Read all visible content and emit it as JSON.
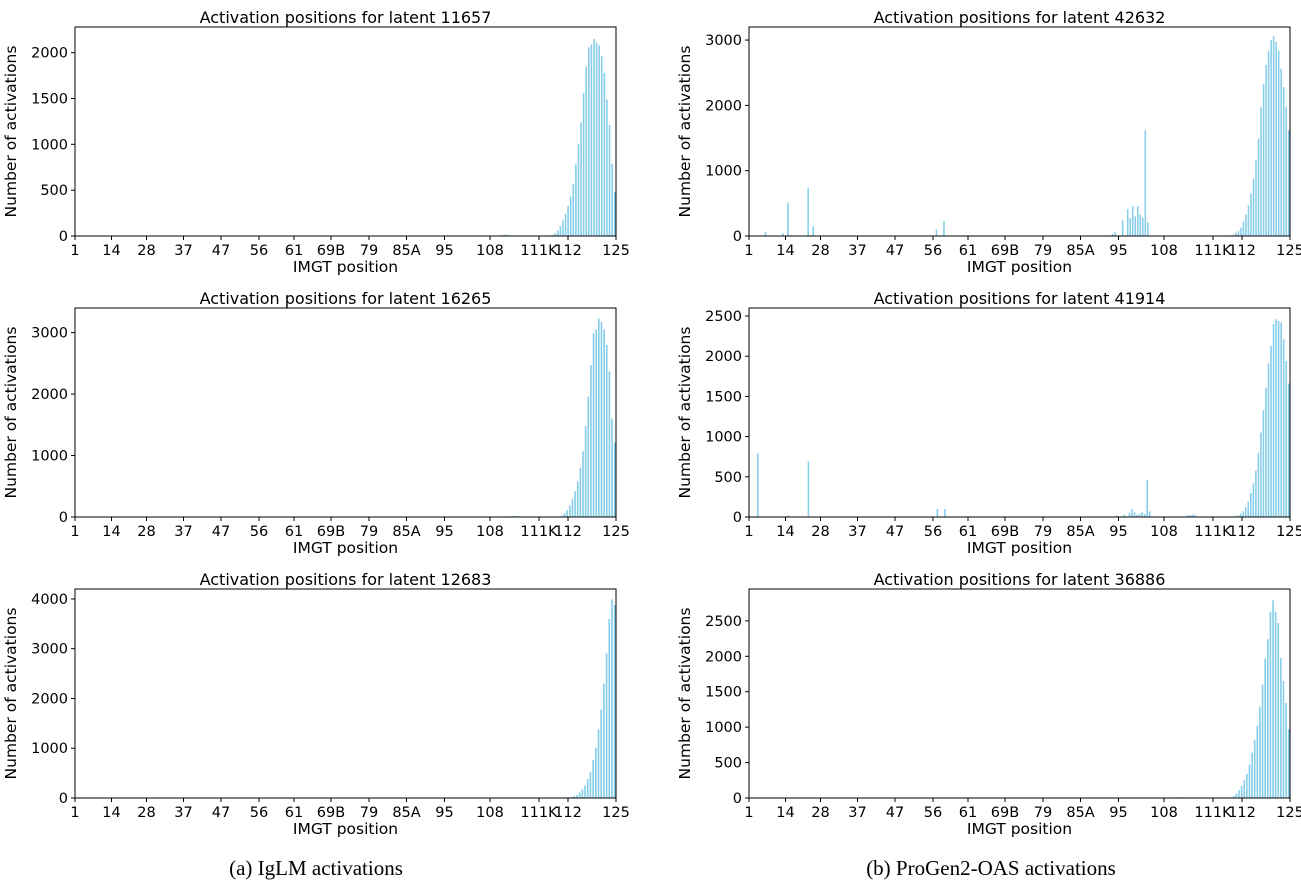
{
  "figure": {
    "captions": {
      "a": "(a) IgLM activations",
      "b": "(b) ProGen2-OAS activations"
    },
    "bar_color": "#87ceeb"
  },
  "chart_data": [
    {
      "type": "bar",
      "title": "Activation positions for latent 11657",
      "xlabel": "IMGT position",
      "ylabel": "Number of activations",
      "x_ticks": [
        "1",
        "14",
        "28",
        "37",
        "47",
        "56",
        "61",
        "69B",
        "79",
        "85A",
        "95",
        "108",
        "111K",
        "112",
        "125"
      ],
      "ylim": [
        0,
        2280
      ],
      "y_ticks": [
        0,
        500,
        1000,
        1500,
        2000
      ],
      "grid": false,
      "values": [
        0,
        0,
        0,
        0,
        0,
        0,
        0,
        0,
        0,
        0,
        0,
        0,
        0,
        0,
        0,
        0,
        0,
        0,
        0,
        0,
        0,
        0,
        0,
        0,
        0,
        0,
        0,
        0,
        0,
        0,
        0,
        0,
        0,
        0,
        0,
        0,
        0,
        0,
        0,
        0,
        0,
        0,
        0,
        0,
        0,
        0,
        0,
        0,
        0,
        0,
        0,
        0,
        0,
        0,
        0,
        0,
        0,
        0,
        0,
        0,
        0,
        0,
        0,
        0,
        0,
        0,
        0,
        0,
        0,
        0,
        0,
        0,
        0,
        0,
        0,
        0,
        0,
        0,
        0,
        0,
        0,
        0,
        0,
        0,
        0,
        0,
        0,
        0,
        0,
        0,
        0,
        0,
        0,
        0,
        0,
        0,
        0,
        0,
        0,
        0,
        0,
        0,
        0,
        0,
        0,
        0,
        0,
        0,
        0,
        0,
        0,
        0,
        0,
        0,
        0,
        0,
        0,
        0,
        0,
        0,
        0,
        0,
        0,
        0,
        0,
        0,
        0,
        0,
        0,
        0,
        0,
        0,
        0,
        0,
        0,
        0,
        0,
        0,
        0,
        0,
        0,
        0,
        0,
        0,
        0,
        0,
        0,
        0,
        0,
        0,
        0,
        0,
        0,
        0,
        0,
        0,
        0,
        0,
        0,
        0,
        0,
        0,
        0,
        5,
        8,
        12,
        15,
        10,
        6,
        3,
        0,
        0,
        0,
        0,
        0,
        0,
        0,
        0,
        0,
        0,
        0,
        0,
        0,
        0,
        10,
        30,
        60,
        110,
        170,
        240,
        330,
        430,
        570,
        780,
        1000,
        1240,
        1560,
        1850,
        2060,
        2090,
        2150,
        2110,
        2080,
        1960,
        1780,
        1490,
        1210,
        790,
        480
      ]
    },
    {
      "type": "bar",
      "title": "Activation positions for latent 42632",
      "xlabel": "IMGT position",
      "ylabel": "Number of activations",
      "x_ticks": [
        "1",
        "14",
        "28",
        "37",
        "47",
        "56",
        "61",
        "69B",
        "79",
        "85A",
        "95",
        "108",
        "111K",
        "112",
        "125"
      ],
      "ylim": [
        0,
        3200
      ],
      "y_ticks": [
        0,
        1000,
        2000,
        3000
      ],
      "grid": false,
      "values": [
        0,
        0,
        0,
        0,
        0,
        0,
        60,
        0,
        0,
        0,
        0,
        0,
        0,
        40,
        0,
        510,
        0,
        0,
        0,
        0,
        0,
        0,
        0,
        740,
        0,
        150,
        0,
        0,
        0,
        0,
        0,
        0,
        0,
        0,
        0,
        0,
        0,
        0,
        0,
        0,
        0,
        0,
        0,
        0,
        0,
        0,
        0,
        0,
        0,
        0,
        0,
        0,
        0,
        0,
        0,
        0,
        0,
        0,
        0,
        0,
        0,
        0,
        0,
        0,
        0,
        0,
        0,
        0,
        0,
        0,
        0,
        0,
        0,
        0,
        100,
        0,
        0,
        230,
        0,
        0,
        0,
        0,
        0,
        0,
        0,
        0,
        0,
        0,
        0,
        0,
        0,
        0,
        0,
        0,
        0,
        0,
        0,
        0,
        0,
        0,
        0,
        0,
        0,
        0,
        0,
        0,
        0,
        0,
        0,
        0,
        0,
        0,
        0,
        0,
        0,
        0,
        0,
        0,
        0,
        0,
        0,
        0,
        0,
        0,
        0,
        0,
        0,
        0,
        0,
        0,
        0,
        0,
        0,
        0,
        0,
        0,
        0,
        0,
        0,
        0,
        0,
        0,
        0,
        0,
        30,
        60,
        0,
        0,
        240,
        0,
        410,
        270,
        460,
        300,
        460,
        330,
        280,
        1620,
        210,
        0,
        0,
        0,
        0,
        0,
        0,
        0,
        0,
        0,
        0,
        0,
        0,
        0,
        0,
        0,
        0,
        0,
        0,
        0,
        0,
        0,
        0,
        0,
        0,
        0,
        0,
        0,
        0,
        0,
        0,
        0,
        0,
        10,
        20,
        50,
        80,
        130,
        220,
        330,
        470,
        650,
        880,
        1170,
        1490,
        1970,
        2330,
        2620,
        2830,
        3000,
        3060,
        2970,
        2840,
        2560,
        2280,
        1980,
        1620
      ]
    },
    {
      "type": "bar",
      "title": "Activation positions for latent 16265",
      "xlabel": "IMGT position",
      "ylabel": "Number of activations",
      "x_ticks": [
        "1",
        "14",
        "28",
        "37",
        "47",
        "56",
        "61",
        "69B",
        "79",
        "85A",
        "95",
        "108",
        "111K",
        "112",
        "125"
      ],
      "ylim": [
        0,
        3400
      ],
      "y_ticks": [
        0,
        1000,
        2000,
        3000
      ],
      "grid": false,
      "values": [
        0,
        0,
        0,
        0,
        0,
        0,
        0,
        0,
        0,
        0,
        0,
        0,
        0,
        0,
        0,
        0,
        0,
        0,
        0,
        0,
        0,
        0,
        0,
        0,
        0,
        0,
        0,
        0,
        0,
        0,
        0,
        0,
        0,
        0,
        0,
        0,
        0,
        0,
        0,
        0,
        0,
        0,
        0,
        0,
        0,
        0,
        0,
        0,
        0,
        0,
        0,
        0,
        0,
        0,
        0,
        0,
        0,
        0,
        0,
        0,
        0,
        0,
        0,
        0,
        0,
        0,
        0,
        0,
        0,
        0,
        0,
        0,
        0,
        0,
        0,
        0,
        0,
        0,
        0,
        0,
        0,
        0,
        0,
        0,
        0,
        0,
        0,
        0,
        0,
        0,
        0,
        0,
        0,
        0,
        0,
        0,
        0,
        0,
        0,
        0,
        0,
        0,
        0,
        0,
        0,
        0,
        0,
        0,
        0,
        0,
        0,
        0,
        0,
        0,
        0,
        0,
        0,
        0,
        0,
        0,
        0,
        0,
        0,
        0,
        0,
        0,
        0,
        0,
        0,
        0,
        0,
        0,
        0,
        0,
        0,
        0,
        0,
        0,
        0,
        0,
        0,
        0,
        0,
        0,
        0,
        0,
        0,
        0,
        0,
        0,
        0,
        0,
        0,
        0,
        0,
        0,
        0,
        0,
        0,
        0,
        0,
        0,
        0,
        10,
        10,
        15,
        20,
        15,
        10,
        5,
        0,
        0,
        0,
        0,
        0,
        0,
        0,
        0,
        0,
        0,
        0,
        0,
        0,
        0,
        20,
        60,
        110,
        190,
        290,
        420,
        580,
        800,
        1070,
        1480,
        1960,
        2470,
        2990,
        3050,
        3230,
        3170,
        3050,
        2800,
        2370,
        1600,
        1210
      ]
    },
    {
      "type": "bar",
      "title": "Activation positions for latent 41914",
      "xlabel": "IMGT position",
      "ylabel": "Number of activations",
      "x_ticks": [
        "1",
        "14",
        "28",
        "37",
        "47",
        "56",
        "61",
        "69B",
        "79",
        "85A",
        "95",
        "108",
        "111K",
        "112",
        "125"
      ],
      "ylim": [
        0,
        2600
      ],
      "y_ticks": [
        0,
        500,
        1000,
        1500,
        2000,
        2500
      ],
      "grid": false,
      "values": [
        0,
        0,
        0,
        790,
        0,
        0,
        0,
        0,
        0,
        0,
        0,
        0,
        0,
        0,
        0,
        20,
        0,
        0,
        0,
        0,
        0,
        0,
        0,
        690,
        0,
        0,
        0,
        0,
        0,
        0,
        0,
        0,
        0,
        0,
        0,
        0,
        0,
        0,
        0,
        0,
        0,
        0,
        0,
        0,
        0,
        0,
        0,
        0,
        0,
        0,
        0,
        0,
        0,
        0,
        0,
        0,
        0,
        0,
        0,
        0,
        0,
        0,
        0,
        0,
        0,
        0,
        0,
        0,
        0,
        0,
        0,
        0,
        0,
        0,
        100,
        0,
        0,
        100,
        0,
        0,
        0,
        0,
        0,
        0,
        0,
        0,
        0,
        0,
        0,
        0,
        0,
        0,
        0,
        0,
        0,
        0,
        0,
        0,
        0,
        0,
        0,
        0,
        0,
        0,
        0,
        0,
        0,
        0,
        0,
        0,
        0,
        0,
        0,
        0,
        0,
        0,
        0,
        0,
        0,
        0,
        0,
        0,
        0,
        0,
        0,
        0,
        0,
        0,
        0,
        0,
        0,
        0,
        0,
        0,
        0,
        0,
        0,
        0,
        0,
        0,
        0,
        0,
        0,
        0,
        0,
        20,
        0,
        0,
        30,
        0,
        50,
        100,
        60,
        30,
        40,
        60,
        40,
        460,
        70,
        0,
        0,
        0,
        0,
        0,
        0,
        0,
        0,
        0,
        0,
        0,
        0,
        0,
        0,
        20,
        25,
        30,
        25,
        0,
        0,
        0,
        0,
        0,
        0,
        0,
        0,
        0,
        0,
        0,
        0,
        0,
        0,
        0,
        10,
        20,
        40,
        70,
        120,
        190,
        300,
        420,
        580,
        800,
        1050,
        1330,
        1610,
        1910,
        2130,
        2400,
        2460,
        2440,
        2420,
        2210,
        1940,
        1660
      ]
    },
    {
      "type": "bar",
      "title": "Activation positions for latent 12683",
      "xlabel": "IMGT position",
      "ylabel": "Number of activations",
      "x_ticks": [
        "1",
        "14",
        "28",
        "37",
        "47",
        "56",
        "61",
        "69B",
        "79",
        "85A",
        "95",
        "108",
        "111K",
        "112",
        "125"
      ],
      "ylim": [
        0,
        4200
      ],
      "y_ticks": [
        0,
        1000,
        2000,
        3000,
        4000
      ],
      "grid": false,
      "values": [
        0,
        0,
        0,
        0,
        0,
        0,
        0,
        0,
        0,
        0,
        0,
        0,
        0,
        0,
        0,
        0,
        0,
        0,
        0,
        0,
        0,
        0,
        0,
        0,
        0,
        0,
        0,
        0,
        0,
        0,
        0,
        0,
        0,
        0,
        0,
        0,
        0,
        0,
        0,
        0,
        0,
        0,
        0,
        0,
        0,
        0,
        0,
        0,
        0,
        0,
        0,
        0,
        0,
        0,
        0,
        0,
        0,
        0,
        0,
        0,
        0,
        0,
        0,
        0,
        0,
        0,
        0,
        0,
        0,
        0,
        0,
        0,
        0,
        0,
        0,
        0,
        0,
        0,
        0,
        0,
        0,
        0,
        0,
        0,
        0,
        0,
        0,
        0,
        0,
        0,
        0,
        0,
        0,
        0,
        0,
        0,
        0,
        0,
        0,
        0,
        0,
        0,
        0,
        0,
        0,
        0,
        0,
        0,
        0,
        0,
        0,
        0,
        0,
        0,
        0,
        0,
        0,
        0,
        0,
        0,
        0,
        0,
        0,
        0,
        0,
        0,
        0,
        0,
        0,
        0,
        0,
        0,
        0,
        0,
        0,
        0,
        0,
        0,
        0,
        0,
        0,
        0,
        0,
        0,
        0,
        0,
        0,
        0,
        0,
        0,
        0,
        0,
        0,
        0,
        0,
        0,
        0,
        0,
        0,
        0,
        0,
        0,
        0,
        0,
        0,
        0,
        0,
        0,
        0,
        0,
        0,
        0,
        0,
        0,
        0,
        0,
        0,
        0,
        0,
        0,
        0,
        0,
        0,
        10,
        20,
        40,
        60,
        110,
        170,
        250,
        380,
        520,
        760,
        1010,
        1380,
        1780,
        2300,
        2910,
        3600,
        3990,
        3880
      ]
    },
    {
      "type": "bar",
      "title": "Activation positions for latent 36886",
      "xlabel": "IMGT position",
      "ylabel": "Number of activations",
      "x_ticks": [
        "1",
        "14",
        "28",
        "37",
        "47",
        "56",
        "61",
        "69B",
        "79",
        "85A",
        "95",
        "108",
        "111K",
        "112",
        "125"
      ],
      "ylim": [
        0,
        2950
      ],
      "y_ticks": [
        0,
        500,
        1000,
        1500,
        2000,
        2500
      ],
      "grid": false,
      "values": [
        0,
        0,
        0,
        0,
        0,
        0,
        0,
        0,
        0,
        0,
        0,
        0,
        0,
        0,
        0,
        0,
        0,
        0,
        0,
        0,
        0,
        0,
        0,
        0,
        0,
        0,
        0,
        0,
        0,
        0,
        0,
        0,
        0,
        0,
        0,
        0,
        0,
        0,
        0,
        0,
        0,
        0,
        0,
        0,
        0,
        0,
        0,
        0,
        0,
        0,
        0,
        0,
        0,
        0,
        0,
        0,
        0,
        0,
        0,
        0,
        0,
        0,
        0,
        0,
        0,
        0,
        0,
        0,
        0,
        0,
        0,
        0,
        0,
        0,
        0,
        0,
        0,
        0,
        0,
        0,
        0,
        0,
        0,
        0,
        0,
        0,
        0,
        0,
        0,
        0,
        0,
        0,
        0,
        0,
        0,
        0,
        0,
        0,
        0,
        0,
        0,
        0,
        0,
        0,
        0,
        0,
        0,
        0,
        0,
        0,
        0,
        0,
        0,
        0,
        0,
        0,
        0,
        0,
        0,
        0,
        0,
        0,
        0,
        0,
        0,
        0,
        0,
        0,
        0,
        0,
        0,
        0,
        0,
        0,
        0,
        0,
        0,
        0,
        0,
        0,
        0,
        0,
        0,
        0,
        0,
        0,
        0,
        0,
        0,
        0,
        0,
        0,
        0,
        0,
        0,
        0,
        0,
        0,
        0,
        0,
        0,
        0,
        0,
        10,
        10,
        12,
        12,
        10,
        8,
        5,
        0,
        0,
        0,
        0,
        0,
        0,
        0,
        0,
        0,
        0,
        0,
        0,
        0,
        0,
        10,
        30,
        60,
        110,
        170,
        250,
        340,
        470,
        640,
        820,
        1020,
        1290,
        1600,
        1970,
        2240,
        2630,
        2790,
        2630,
        2470,
        1980,
        1650,
        1340,
        970
      ]
    }
  ]
}
